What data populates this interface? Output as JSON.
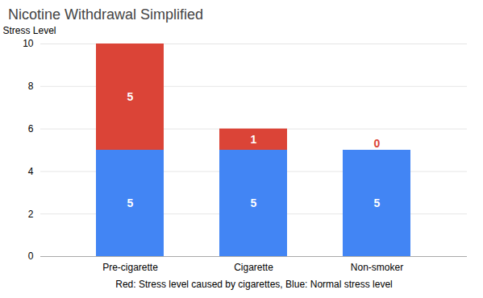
{
  "chart_data": {
    "type": "bar",
    "stacked": true,
    "title": "Nicotine Withdrawal Simplified",
    "categories": [
      "Pre-cigarette",
      "Cigarette",
      "Non-smoker"
    ],
    "series": [
      {
        "color": "#4285F4",
        "values": [
          5,
          5,
          5
        ]
      },
      {
        "color": "#DB4437",
        "values": [
          5,
          1,
          0
        ]
      }
    ],
    "xlabel": "Red: Stress level caused by cigarettes, Blue: Normal stress level",
    "ylabel": "Stress Level",
    "ylim": [
      0,
      10
    ],
    "yticks": [
      0,
      2,
      4,
      6,
      8,
      10
    ],
    "grid": true,
    "data_labels": true
  }
}
